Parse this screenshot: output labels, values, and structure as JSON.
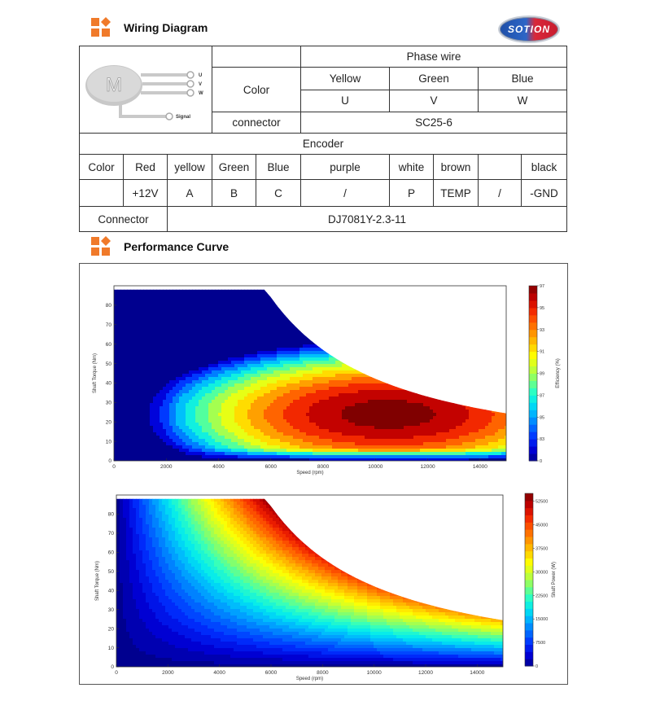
{
  "header": {
    "title": "Wiring Diagram",
    "logo_text": "SOTION"
  },
  "motor": {
    "label": "M",
    "u": "U",
    "v": "V",
    "w": "W",
    "signal": "Signal"
  },
  "phase": {
    "title": "Phase wire",
    "color_label": "Color",
    "colors": [
      "Yellow",
      "Green",
      "Blue"
    ],
    "phases": [
      "U",
      "V",
      "W"
    ],
    "connector_label": "connector",
    "connector_value": "SC25-6"
  },
  "encoder": {
    "title": "Encoder",
    "color_label": "Color",
    "colors": [
      "Red",
      "yellow",
      "Green",
      "Blue",
      "purple",
      "white",
      "brown",
      "",
      "black"
    ],
    "signals": [
      "",
      "+12V",
      "A",
      "B",
      "C",
      "/",
      "P",
      "TEMP",
      "/",
      "-GND"
    ],
    "connector_label": "Connector",
    "connector_value": "DJ7081Y-2.3-11"
  },
  "performance": {
    "title": "Performance Curve"
  },
  "chart_data": [
    {
      "type": "heatmap",
      "title": "",
      "xlabel": "Speed  (rpm)",
      "ylabel": "Shaft Torque (Nm)",
      "xlim": [
        0,
        15000
      ],
      "ylim": [
        0,
        90
      ],
      "xticks": [
        "0",
        "2000",
        "4000",
        "6000",
        "8000",
        "10000",
        "12000",
        "14000"
      ],
      "yticks": [
        "0",
        "10",
        "20",
        "30",
        "40",
        "50",
        "60",
        "70",
        "80"
      ],
      "colorbar_label": "Efficiency (%)",
      "colorbar_ticks": [
        "0",
        "83",
        "85",
        "87",
        "89",
        "91",
        "93",
        "95",
        "97"
      ],
      "max_torque_nm": 88,
      "corner_speed_rpm": 5800,
      "peak_efficiency_pct": 97,
      "peak_point": {
        "speed_rpm": 10500,
        "torque_nm": 24
      }
    },
    {
      "type": "heatmap",
      "title": "",
      "xlabel": "Speed  (rpm)",
      "ylabel": "Shaft Torque (Nm)",
      "xlim": [
        0,
        15000
      ],
      "ylim": [
        0,
        90
      ],
      "xticks": [
        "0",
        "2000",
        "4000",
        "6000",
        "8000",
        "10000",
        "12000",
        "14000"
      ],
      "yticks": [
        "0",
        "10",
        "20",
        "30",
        "40",
        "50",
        "60",
        "70",
        "80"
      ],
      "colorbar_label": "Shaft Power (W)",
      "colorbar_ticks": [
        "0",
        "7500",
        "15000",
        "22500",
        "30000",
        "37500",
        "45000",
        "52500"
      ],
      "max_torque_nm": 88,
      "corner_speed_rpm": 5800,
      "max_power_w": 55000
    }
  ],
  "colors": {
    "accent": "#f07a2a",
    "logo_blue": "#1f4fa8",
    "logo_red": "#c81d2e"
  }
}
